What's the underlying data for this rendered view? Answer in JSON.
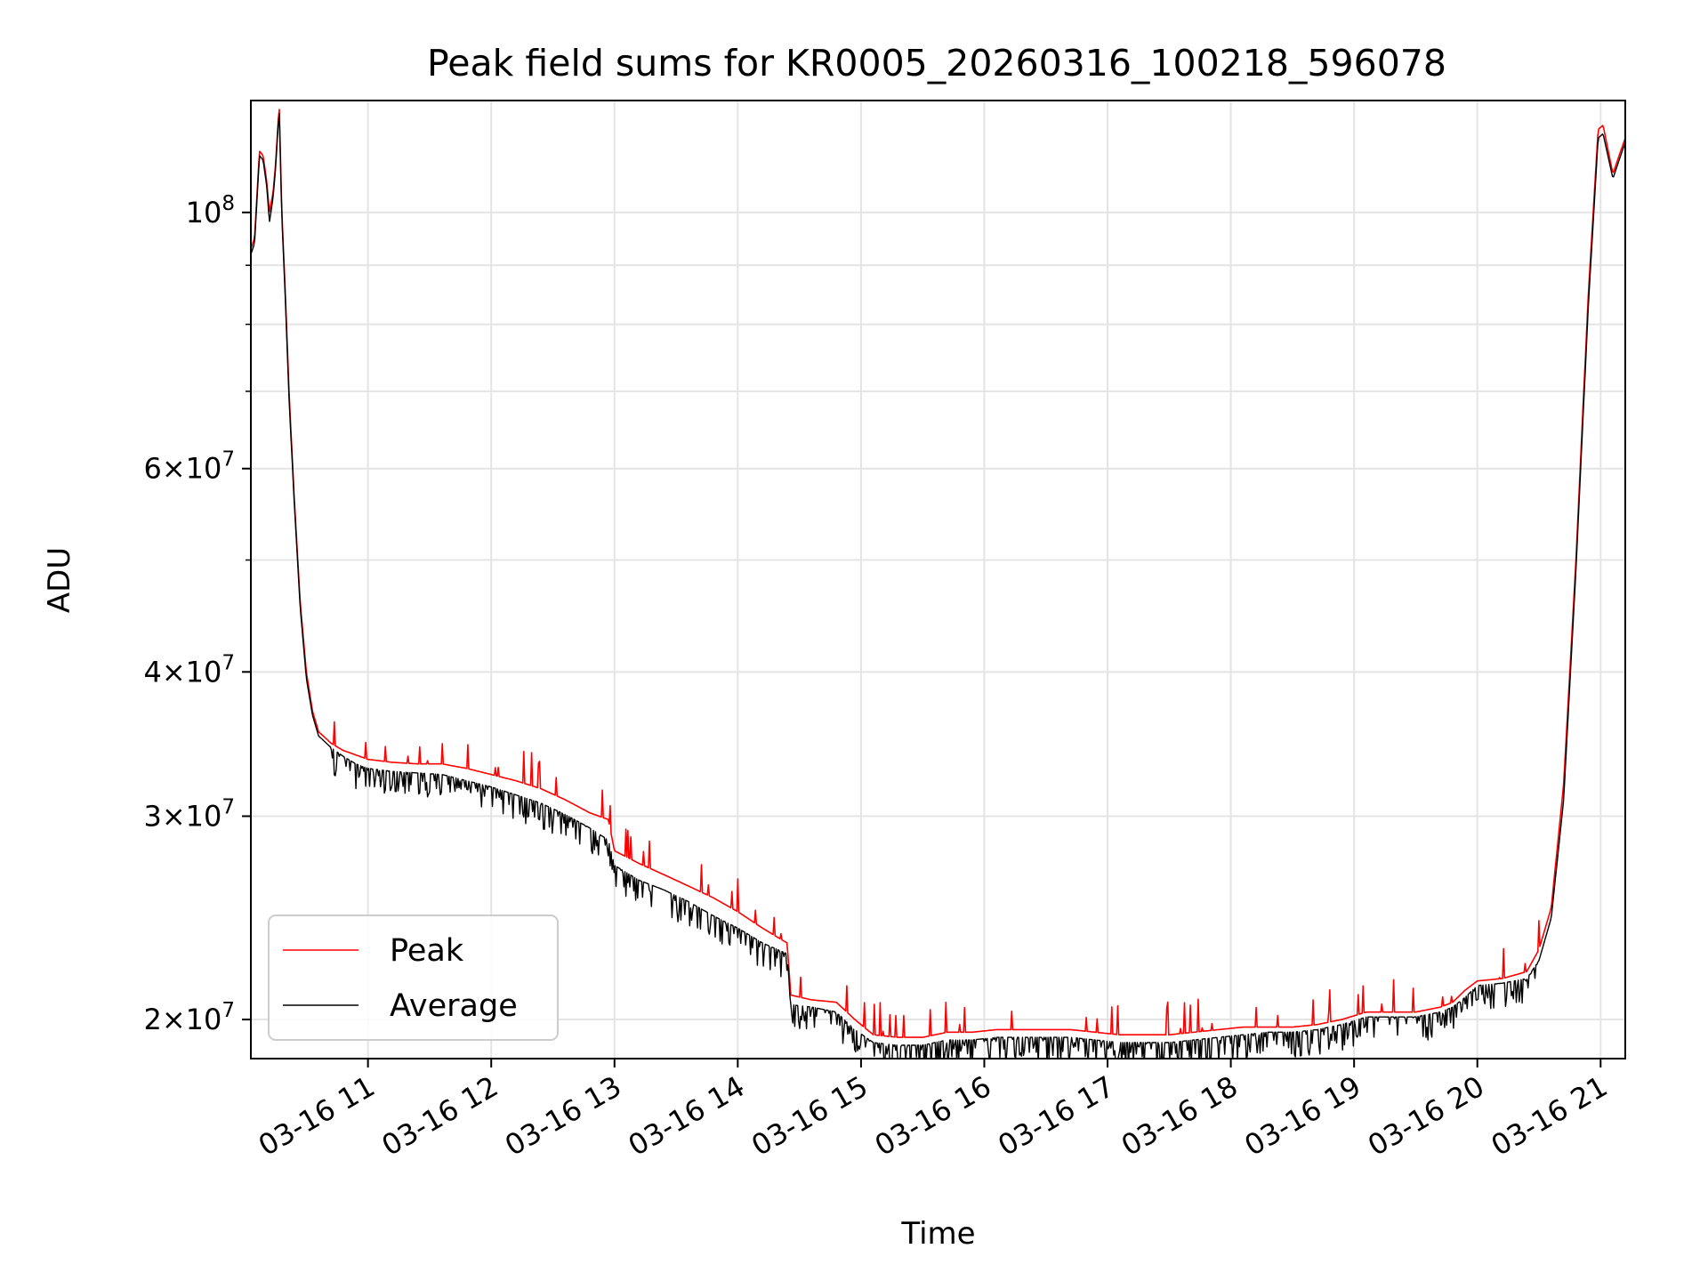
{
  "chart_data": {
    "type": "line",
    "title": "Peak field sums for KR0005_20260316_100218_596078",
    "xlabel": "Time",
    "ylabel": "ADU",
    "yscale": "log",
    "grid": true,
    "legend_position": "lower-left",
    "xlim": [
      10.05,
      21.2
    ],
    "ylim": [
      18500000,
      125000000
    ],
    "x_unit": "hours on 2026-03-16",
    "x_ticks": [
      {
        "value": 11,
        "label": "03-16 11"
      },
      {
        "value": 12,
        "label": "03-16 12"
      },
      {
        "value": 13,
        "label": "03-16 13"
      },
      {
        "value": 14,
        "label": "03-16 14"
      },
      {
        "value": 15,
        "label": "03-16 15"
      },
      {
        "value": 16,
        "label": "03-16 16"
      },
      {
        "value": 17,
        "label": "03-16 17"
      },
      {
        "value": 18,
        "label": "03-16 18"
      },
      {
        "value": 19,
        "label": "03-16 19"
      },
      {
        "value": 20,
        "label": "03-16 20"
      },
      {
        "value": 21,
        "label": "03-16 21"
      }
    ],
    "y_major_ticks": [
      {
        "value": 100000000,
        "mantissa": "",
        "base": "10",
        "exp": "8"
      },
      {
        "value": 60000000,
        "mantissa": "6×",
        "base": "10",
        "exp": "7"
      },
      {
        "value": 40000000,
        "mantissa": "4×",
        "base": "10",
        "exp": "7"
      },
      {
        "value": 30000000,
        "mantissa": "3×",
        "base": "10",
        "exp": "7"
      },
      {
        "value": 20000000,
        "mantissa": "2×",
        "base": "10",
        "exp": "7"
      }
    ],
    "y_minor_ticks": [
      90000000,
      80000000,
      70000000,
      50000000
    ],
    "series": [
      {
        "name": "Peak",
        "color": "#ff0000",
        "x": [
          10.05,
          10.08,
          10.12,
          10.15,
          10.18,
          10.2,
          10.23,
          10.25,
          10.28,
          10.3,
          10.33,
          10.36,
          10.4,
          10.45,
          10.5,
          10.55,
          10.6,
          10.7,
          10.8,
          10.9,
          11.0,
          11.2,
          11.4,
          11.6,
          11.8,
          12.0,
          12.2,
          12.4,
          12.6,
          12.8,
          12.95,
          13.0,
          13.2,
          13.4,
          13.6,
          13.8,
          14.0,
          14.2,
          14.4,
          14.43,
          14.6,
          14.8,
          14.95,
          15.1,
          15.3,
          15.5,
          15.7,
          15.9,
          16.1,
          16.3,
          16.5,
          16.7,
          16.9,
          17.1,
          17.3,
          17.5,
          17.7,
          17.9,
          18.1,
          18.3,
          18.5,
          18.7,
          18.9,
          19.1,
          19.3,
          19.5,
          19.7,
          19.8,
          19.9,
          20.0,
          20.2,
          20.4,
          20.5,
          20.6,
          20.7,
          20.8,
          20.9,
          20.98,
          21.02,
          21.1,
          21.15,
          21.2
        ],
        "y": [
          93000000,
          95000000,
          113000000,
          112000000,
          106000000,
          100000000,
          104000000,
          110000000,
          124000000,
          101000000,
          85000000,
          70000000,
          57000000,
          46000000,
          40000000,
          37000000,
          35500000,
          34700000,
          34200000,
          33900000,
          33600000,
          33400000,
          33300000,
          33300000,
          33000000,
          32600000,
          32200000,
          31700000,
          31000000,
          30200000,
          29800000,
          28000000,
          27300000,
          26700000,
          26100000,
          25500000,
          24800000,
          24000000,
          23300000,
          21000000,
          20800000,
          20700000,
          20000000,
          19400000,
          19300000,
          19300000,
          19500000,
          19500000,
          19600000,
          19600000,
          19600000,
          19600000,
          19500000,
          19400000,
          19400000,
          19400000,
          19500000,
          19600000,
          19700000,
          19700000,
          19700000,
          19800000,
          20000000,
          20300000,
          20300000,
          20300000,
          20500000,
          20700000,
          21200000,
          21600000,
          21700000,
          22000000,
          23000000,
          25000000,
          32000000,
          50000000,
          85000000,
          118000000,
          119000000,
          108000000,
          112000000,
          116000000
        ]
      },
      {
        "name": "Average",
        "color": "#000000",
        "x": [
          10.05,
          10.08,
          10.12,
          10.15,
          10.18,
          10.2,
          10.23,
          10.25,
          10.28,
          10.3,
          10.33,
          10.36,
          10.4,
          10.45,
          10.5,
          10.55,
          10.6,
          10.7,
          10.8,
          10.9,
          11.0,
          11.2,
          11.4,
          11.6,
          11.8,
          12.0,
          12.2,
          12.4,
          12.6,
          12.8,
          12.95,
          13.0,
          13.2,
          13.4,
          13.6,
          13.8,
          14.0,
          14.2,
          14.4,
          14.43,
          14.6,
          14.8,
          14.95,
          15.1,
          15.3,
          15.5,
          15.7,
          15.9,
          16.1,
          16.3,
          16.5,
          16.7,
          16.9,
          17.1,
          17.3,
          17.5,
          17.7,
          17.9,
          18.1,
          18.3,
          18.5,
          18.7,
          18.9,
          19.1,
          19.3,
          19.5,
          19.7,
          19.8,
          19.9,
          20.0,
          20.2,
          20.4,
          20.5,
          20.6,
          20.7,
          20.8,
          20.9,
          20.98,
          21.02,
          21.1,
          21.15,
          21.2
        ],
        "y": [
          92000000,
          94000000,
          112000000,
          111000000,
          105000000,
          98000000,
          103000000,
          109000000,
          123000000,
          100000000,
          84000000,
          69000000,
          56500000,
          45500000,
          39500000,
          36700000,
          35200000,
          34400000,
          33800000,
          33300000,
          33000000,
          32800000,
          32700000,
          32600000,
          32200000,
          31800000,
          31300000,
          30800000,
          30100000,
          29300000,
          28600000,
          27200000,
          26400000,
          25900000,
          25300000,
          24600000,
          24000000,
          23300000,
          22800000,
          20600000,
          20500000,
          20300000,
          19600000,
          19100000,
          19000000,
          19000000,
          19200000,
          19200000,
          19300000,
          19300000,
          19300000,
          19300000,
          19200000,
          19100000,
          19100000,
          19100000,
          19200000,
          19300000,
          19400000,
          19500000,
          19500000,
          19600000,
          19800000,
          20100000,
          20100000,
          20100000,
          20300000,
          20500000,
          20900000,
          21400000,
          21500000,
          21700000,
          22500000,
          24500000,
          31000000,
          49000000,
          83000000,
          116000000,
          117000000,
          107000000,
          111000000,
          115000000
        ]
      }
    ]
  }
}
